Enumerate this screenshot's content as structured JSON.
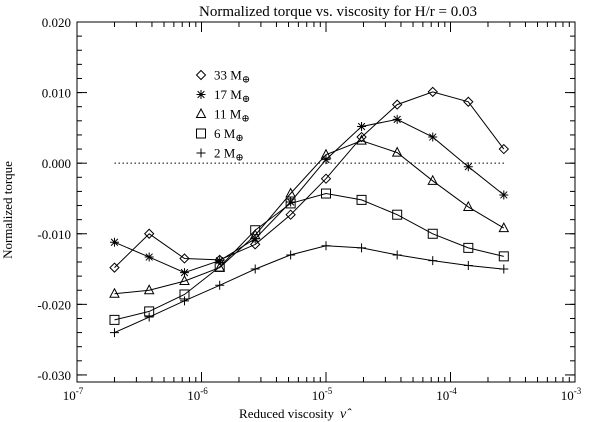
{
  "chart_data": {
    "type": "line",
    "title": "Normalized torque vs. viscosity for H/r = 0.03",
    "xlabel": "Reduced viscosity",
    "xlabel_symbol": "ν̂",
    "ylabel": "Normalized torque",
    "xscale": "log",
    "xlim": [
      1e-07,
      0.001
    ],
    "ylim": [
      -0.031,
      0.02
    ],
    "x_tick_values": [
      1e-07,
      1e-06,
      1e-05,
      0.0001,
      0.001
    ],
    "x_tick_labels": [
      {
        "base": "10",
        "exp": "-7"
      },
      {
        "base": "10",
        "exp": "-6"
      },
      {
        "base": "10",
        "exp": "-5"
      },
      {
        "base": "10",
        "exp": "-4"
      },
      {
        "base": "10",
        "exp": "-3"
      }
    ],
    "y_tick_values": [
      -0.03,
      -0.02,
      -0.01,
      0.0,
      0.01,
      0.02
    ],
    "y_tick_labels": [
      "-0.030",
      "-0.020",
      "-0.010",
      "0.000",
      "0.010",
      "0.020"
    ],
    "reference_line": {
      "y": 0.0,
      "x_from": 2e-07,
      "x_to": 0.00027,
      "style": "dotted"
    },
    "grid": false,
    "legend_position": "top-left",
    "x": [
      2e-07,
      3.8e-07,
      7.3e-07,
      1.4e-06,
      2.7e-06,
      5.2e-06,
      1e-05,
      1.93e-05,
      3.73e-05,
      7.2e-05,
      0.000139,
      0.000268
    ],
    "series": [
      {
        "name": "33 M",
        "marker": "diamond",
        "values": [
          -0.0148,
          -0.01,
          -0.0135,
          -0.0137,
          -0.0115,
          -0.0073,
          -0.0022,
          0.0037,
          0.0083,
          0.0101,
          0.0087,
          0.002
        ]
      },
      {
        "name": "17 M",
        "marker": "asterisk",
        "values": [
          -0.0112,
          -0.0133,
          -0.0155,
          -0.0138,
          -0.0107,
          -0.0055,
          0.0005,
          0.0052,
          0.0062,
          0.0037,
          -0.0005,
          -0.0045
        ]
      },
      {
        "name": "11 M",
        "marker": "triangle",
        "values": [
          -0.0185,
          -0.018,
          -0.0167,
          -0.0148,
          -0.0102,
          -0.0043,
          0.0012,
          0.0032,
          0.0015,
          -0.0025,
          -0.0062,
          -0.0092
        ]
      },
      {
        "name": "6 M",
        "marker": "square",
        "values": [
          -0.0222,
          -0.021,
          -0.0186,
          -0.0147,
          -0.0095,
          -0.0057,
          -0.0043,
          -0.0052,
          -0.0073,
          -0.01,
          -0.012,
          -0.0132
        ]
      },
      {
        "name": "2 M",
        "marker": "plus",
        "values": [
          -0.024,
          -0.0218,
          -0.0195,
          -0.0173,
          -0.015,
          -0.013,
          -0.0117,
          -0.012,
          -0.013,
          -0.0138,
          -0.0145,
          -0.015
        ]
      }
    ],
    "legend_suffix_symbol": "⊕"
  }
}
